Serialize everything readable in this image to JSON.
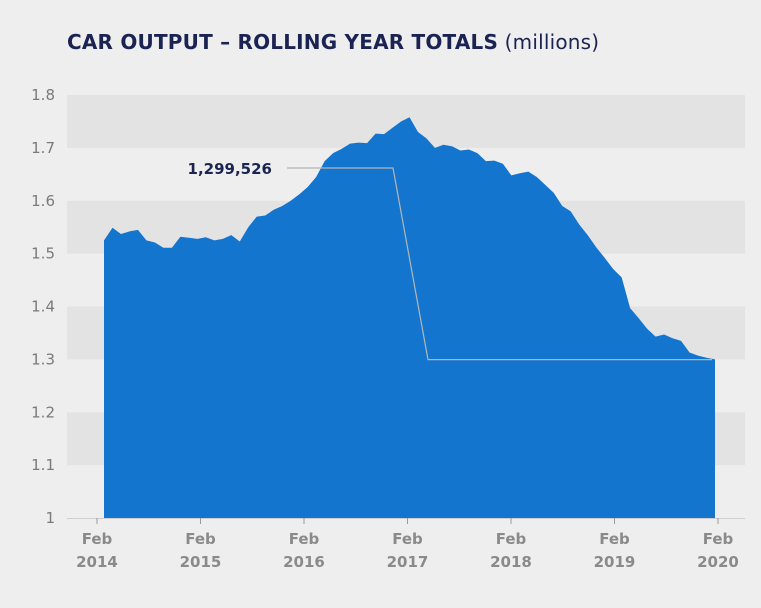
{
  "title": {
    "main": "CAR OUTPUT – ROLLING YEAR TOTALS",
    "unit": "(millions)"
  },
  "colors": {
    "area": "#1475cf",
    "band_light": "#eeeeee",
    "band_dark": "#e3e3e3",
    "axis_text": "#7a7a7a",
    "title": "#1b2352"
  },
  "annotation": {
    "label": "1,299,526",
    "value": 1.299526
  },
  "chart_data": {
    "type": "area",
    "title": "CAR OUTPUT – ROLLING YEAR TOTALS (millions)",
    "xlabel": "",
    "ylabel": "",
    "ylim": [
      1.0,
      1.8
    ],
    "y_ticks": [
      "1",
      "1.1",
      "1.2",
      "1.3",
      "1.4",
      "1.5",
      "1.6",
      "1.7",
      "1.8"
    ],
    "x_ticks": [
      {
        "month": "Feb",
        "year": "2014"
      },
      {
        "month": "Feb",
        "year": "2015"
      },
      {
        "month": "Feb",
        "year": "2016"
      },
      {
        "month": "Feb",
        "year": "2017"
      },
      {
        "month": "Feb",
        "year": "2018"
      },
      {
        "month": "Feb",
        "year": "2019"
      },
      {
        "month": "Feb",
        "year": "2020"
      }
    ],
    "x_start": "2014-02",
    "x_end": "2020-02",
    "series": [
      {
        "values": [
          1.525,
          1.549,
          1.537,
          1.542,
          1.545,
          1.525,
          1.521,
          1.511,
          1.511,
          1.532,
          1.53,
          1.528,
          1.531,
          1.525,
          1.528,
          1.535,
          1.523,
          1.55,
          1.57,
          1.572,
          1.583,
          1.59,
          1.6,
          1.612,
          1.626,
          1.645,
          1.675,
          1.69,
          1.698,
          1.708,
          1.71,
          1.709,
          1.727,
          1.726,
          1.738,
          1.75,
          1.758,
          1.73,
          1.718,
          1.7,
          1.706,
          1.703,
          1.695,
          1.697,
          1.69,
          1.675,
          1.676,
          1.67,
          1.648,
          1.652,
          1.655,
          1.645,
          1.63,
          1.615,
          1.59,
          1.58,
          1.555,
          1.535,
          1.512,
          1.492,
          1.471,
          1.455,
          1.397,
          1.378,
          1.358,
          1.343,
          1.347,
          1.34,
          1.335,
          1.313,
          1.307,
          1.303,
          1.3
        ]
      }
    ]
  }
}
